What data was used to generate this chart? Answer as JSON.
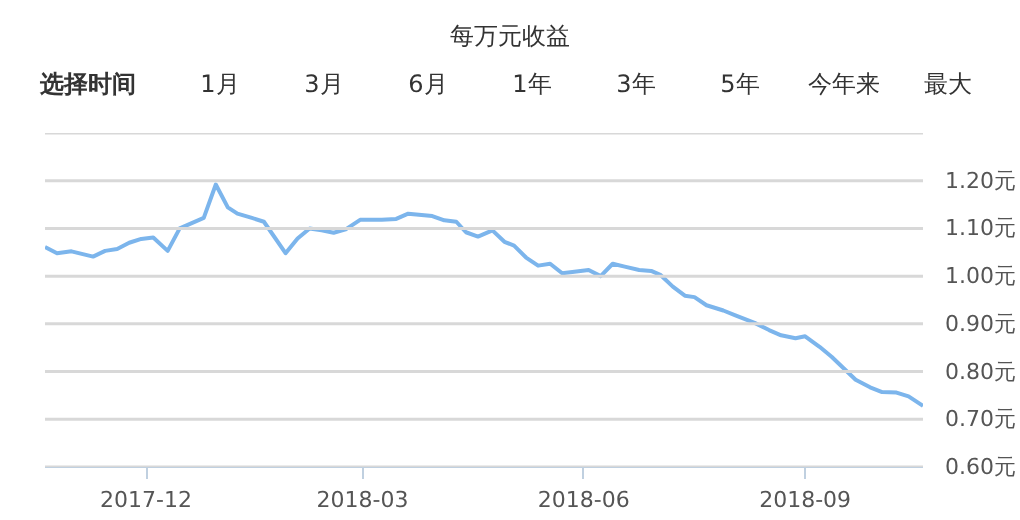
{
  "chart_data": {
    "type": "line",
    "title": "每万元收益",
    "annotations": [
      "选择时间",
      "1月",
      "3月",
      "6月",
      "1年",
      "3年",
      "5年",
      "今年来",
      "最大"
    ],
    "x": [
      "2017-10-20",
      "2017-10-25",
      "2017-10-31",
      "2017-11-09",
      "2017-11-14",
      "2017-11-19",
      "2017-11-24",
      "2017-11-29",
      "2017-12-04",
      "2017-12-10",
      "2017-12-15",
      "2017-12-25",
      "2017-12-30",
      "2018-01-04",
      "2018-01-08",
      "2018-01-14",
      "2018-01-19",
      "2018-01-28",
      "2018-02-02",
      "2018-02-07",
      "2018-02-12",
      "2018-02-17",
      "2018-02-22",
      "2018-02-28",
      "2018-03-09",
      "2018-03-15",
      "2018-03-20",
      "2018-03-30",
      "2018-04-04",
      "2018-04-09",
      "2018-04-13",
      "2018-04-18",
      "2018-04-24",
      "2018-04-29",
      "2018-05-03",
      "2018-05-08",
      "2018-05-13",
      "2018-05-18",
      "2018-05-23",
      "2018-06-03",
      "2018-06-08",
      "2018-06-13",
      "2018-06-18",
      "2018-06-24",
      "2018-06-29",
      "2018-07-03",
      "2018-07-08",
      "2018-07-13",
      "2018-07-17",
      "2018-07-22",
      "2018-07-29",
      "2018-08-03",
      "2018-08-11",
      "2018-08-17",
      "2018-08-22",
      "2018-08-28",
      "2018-09-01",
      "2018-09-07",
      "2018-09-12",
      "2018-09-17",
      "2018-09-22",
      "2018-09-28",
      "2018-10-03",
      "2018-10-09",
      "2018-10-14",
      "2018-10-20"
    ],
    "series": [
      {
        "color": "#7cb5ec",
        "values": [
          1.061,
          1.048,
          1.052,
          1.041,
          1.053,
          1.057,
          1.07,
          1.078,
          1.081,
          1.053,
          1.1,
          1.122,
          1.192,
          1.144,
          1.131,
          1.122,
          1.114,
          1.048,
          1.079,
          1.1,
          1.096,
          1.091,
          1.098,
          1.118,
          1.118,
          1.12,
          1.131,
          1.126,
          1.117,
          1.114,
          1.092,
          1.083,
          1.096,
          1.072,
          1.064,
          1.039,
          1.022,
          1.026,
          1.006,
          1.013,
          1.0,
          1.026,
          1.02,
          1.013,
          1.011,
          1.002,
          0.978,
          0.959,
          0.956,
          0.939,
          0.928,
          0.918,
          0.902,
          0.887,
          0.876,
          0.87,
          0.874,
          0.852,
          0.831,
          0.807,
          0.783,
          0.767,
          0.757,
          0.756,
          0.748,
          0.728
        ]
      }
    ],
    "xlim": [
      "2017-10-20",
      "2018-10-20"
    ],
    "xticks": [
      {
        "value": "2017-12-01",
        "label": "2017-12"
      },
      {
        "value": "2018-03-01",
        "label": "2018-03"
      },
      {
        "value": "2018-06-01",
        "label": "2018-06"
      },
      {
        "value": "2018-09-01",
        "label": "2018-09"
      }
    ],
    "ylim": [
      0.6,
      1.3
    ],
    "yticks": [
      {
        "value": 0.6,
        "label": "0.60元"
      },
      {
        "value": 0.7,
        "label": "0.70元"
      },
      {
        "value": 0.8,
        "label": "0.80元"
      },
      {
        "value": 0.9,
        "label": "0.90元"
      },
      {
        "value": 1.0,
        "label": "1.00元"
      },
      {
        "value": 1.1,
        "label": "1.10元"
      },
      {
        "value": 1.2,
        "label": "1.20元"
      },
      {
        "value": 1.3,
        "label": null
      }
    ],
    "grid": "y",
    "marker": "none",
    "line_style": "solid"
  }
}
